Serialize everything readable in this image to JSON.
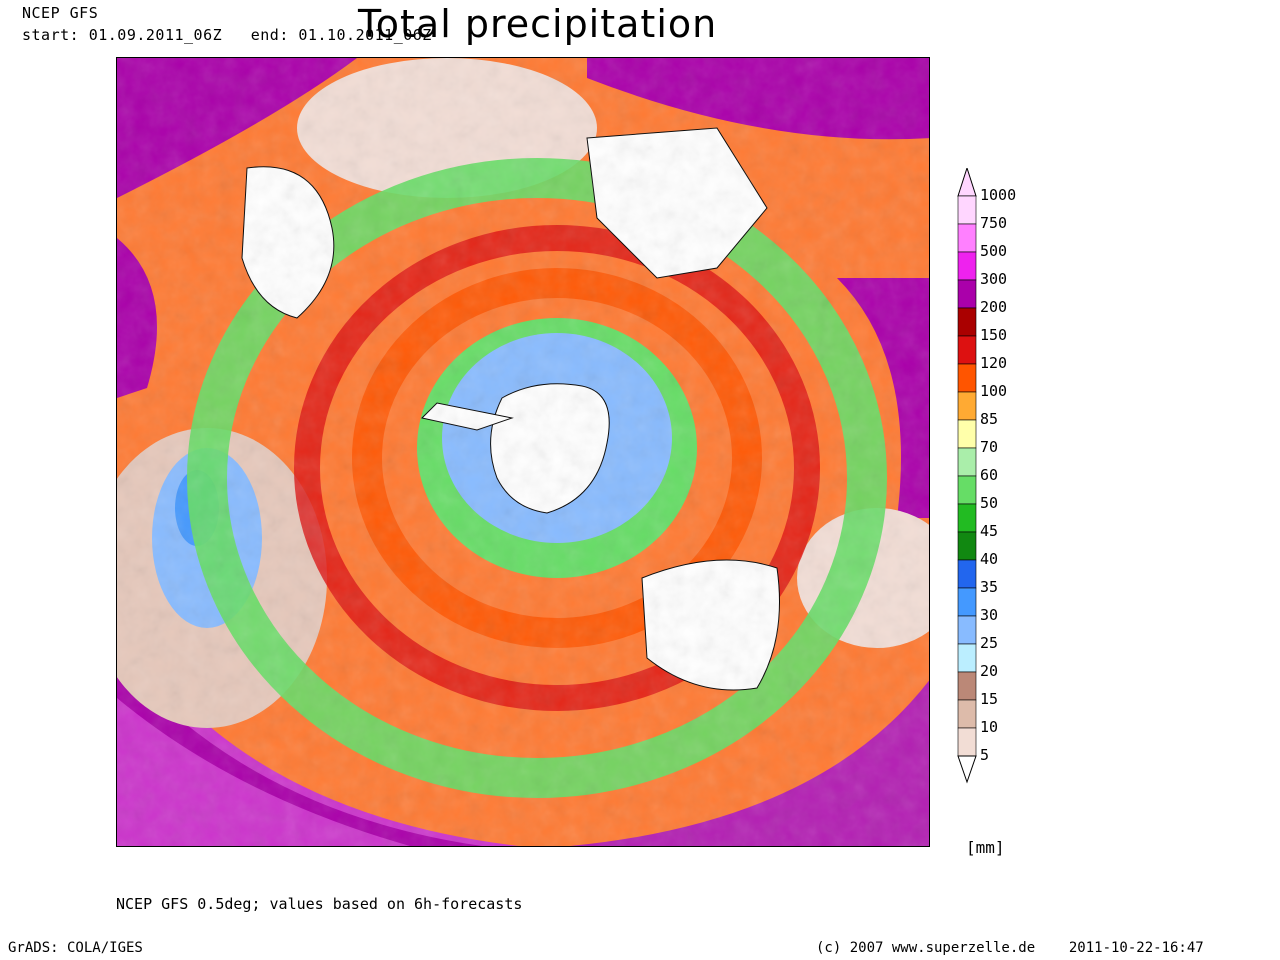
{
  "header": {
    "model": "NCEP GFS",
    "period": "start: 01.09.2011_06Z   end: 01.10.2011_06Z",
    "title": "Total precipitation"
  },
  "map": {
    "projection": "polar-stereographic-south",
    "field": "Total precipitation"
  },
  "legend": {
    "unit": "[mm]",
    "levels": [
      "1000",
      "750",
      "500",
      "300",
      "200",
      "150",
      "120",
      "100",
      "85",
      "70",
      "60",
      "50",
      "45",
      "40",
      "35",
      "30",
      "25",
      "20",
      "15",
      "10",
      "5"
    ],
    "colors": [
      "#ffd6ff",
      "#ff80ff",
      "#ee22ee",
      "#aa00aa",
      "#aa0000",
      "#dd1111",
      "#ff5500",
      "#ffaa33",
      "#ffffaa",
      "#aaeeaa",
      "#66dd66",
      "#22bb22",
      "#118811",
      "#2266ee",
      "#4499ff",
      "#88bbff",
      "#bbeeff",
      "#bb8877",
      "#ddbbaa",
      "#f2ddd5",
      "#ffffff"
    ]
  },
  "note": "NCEP GFS 0.5deg; values based on 6h-forecasts",
  "footer": {
    "left": "GrADS: COLA/IGES",
    "right": "(c) 2007 www.superzelle.de    2011-10-22-16:47"
  }
}
